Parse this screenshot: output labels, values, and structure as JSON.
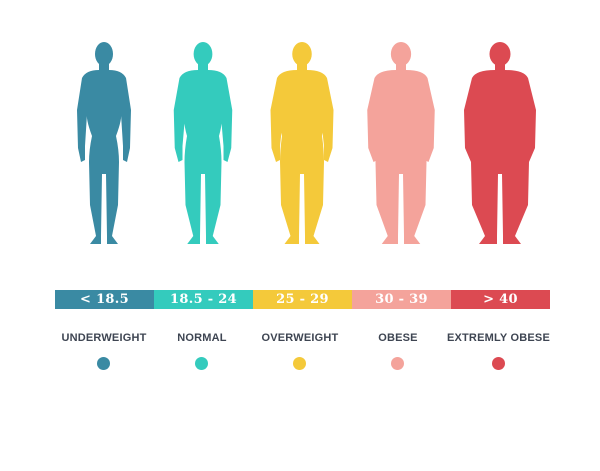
{
  "categories": [
    {
      "range": "< 18.5",
      "label": "UNDERWEIGHT",
      "color": "#3a8aa3",
      "icon": "body-silhouette-underweight-icon",
      "build": 0.0
    },
    {
      "range": "18.5 - 24",
      "label": "NORMAL",
      "color": "#34cbbd",
      "icon": "body-silhouette-normal-icon",
      "build": 0.25
    },
    {
      "range": "25 - 29",
      "label": "OVERWEIGHT",
      "color": "#f4c93a",
      "icon": "body-silhouette-overweight-icon",
      "build": 0.5
    },
    {
      "range": "30 - 39",
      "label": "OBESE",
      "color": "#f4a39b",
      "icon": "body-silhouette-obese-icon",
      "build": 0.75
    },
    {
      "range": "> 40",
      "label": "EXTREMLY OBESE",
      "color": "#dc4a52",
      "icon": "body-silhouette-extremely-obese-icon",
      "build": 1.0
    }
  ]
}
